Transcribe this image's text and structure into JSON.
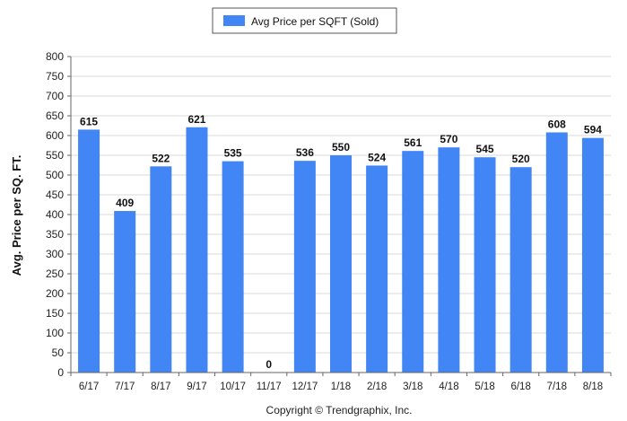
{
  "chart_data": {
    "type": "bar",
    "categories": [
      "6/17",
      "7/17",
      "8/17",
      "9/17",
      "10/17",
      "11/17",
      "12/17",
      "1/18",
      "2/18",
      "3/18",
      "4/18",
      "5/18",
      "6/18",
      "7/18",
      "8/18"
    ],
    "series": [
      {
        "name": "Avg Price per SQFT (Sold)",
        "color": "#4285f4",
        "values": [
          615,
          409,
          522,
          621,
          535,
          0,
          536,
          550,
          524,
          561,
          570,
          545,
          520,
          608,
          594
        ]
      }
    ],
    "ylabel": "Avg. Price per SQ. FT.",
    "xlabel": "",
    "ylim": [
      0,
      800
    ],
    "yticks": [
      0,
      50,
      100,
      150,
      200,
      250,
      300,
      350,
      400,
      450,
      500,
      550,
      600,
      650,
      700,
      750,
      800
    ],
    "grid": true,
    "legend_position": "top-center",
    "data_labels": true
  },
  "footer": {
    "copyright": "Copyright © Trendgraphix, Inc."
  }
}
